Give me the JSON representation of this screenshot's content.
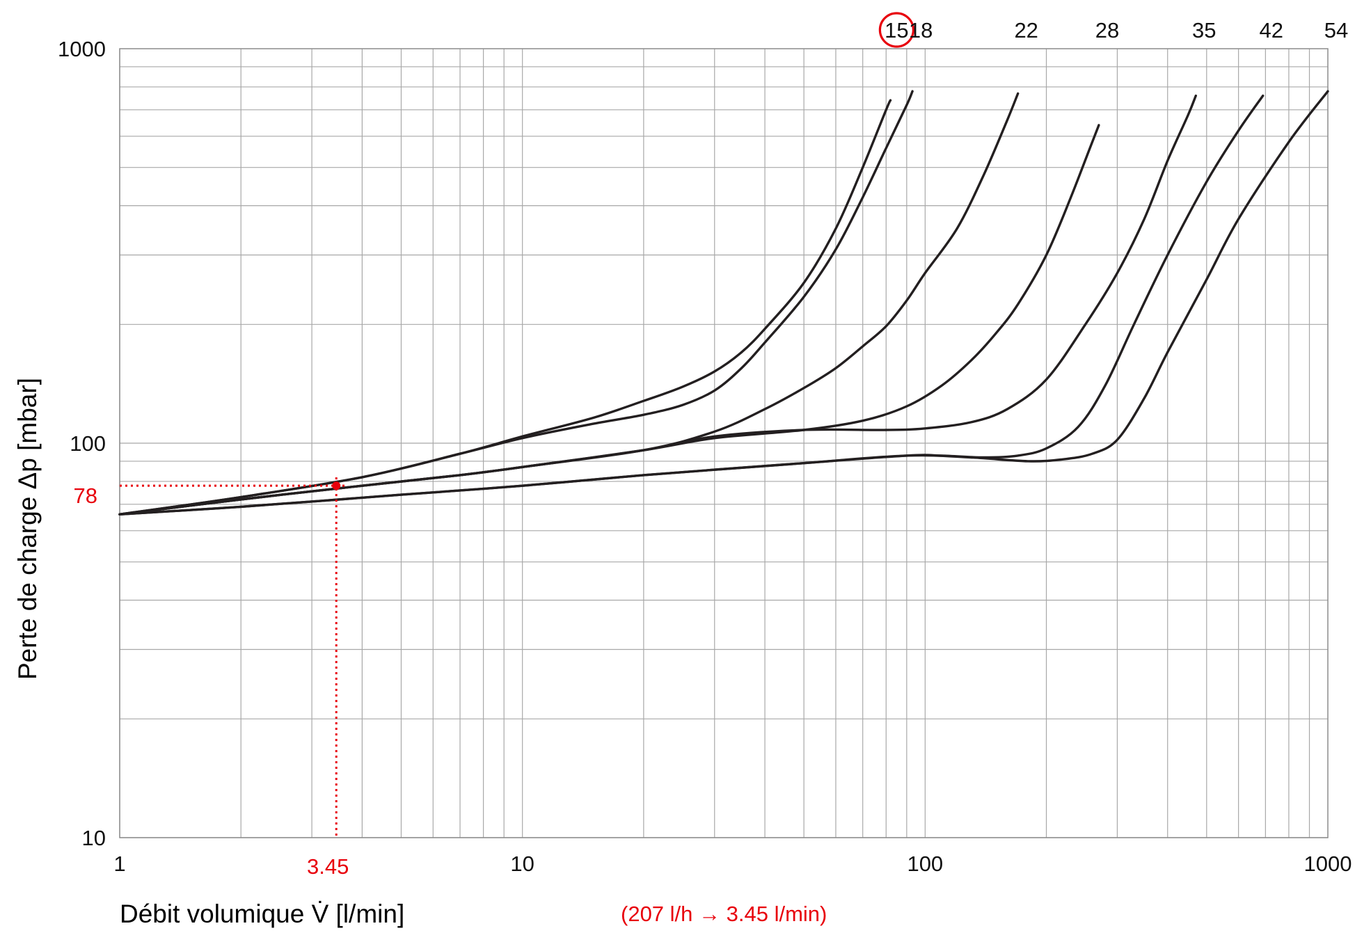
{
  "chart_data": {
    "type": "line",
    "x_scale": "log",
    "y_scale": "log",
    "xlim": [
      1,
      1000
    ],
    "ylim": [
      10,
      1000
    ],
    "x_ticks": [
      {
        "value": 1,
        "label": "1"
      },
      {
        "value": 10,
        "label": "10"
      },
      {
        "value": 100,
        "label": "100"
      },
      {
        "value": 1000,
        "label": "1000"
      }
    ],
    "y_ticks": [
      {
        "value": 10,
        "label": "10"
      },
      {
        "value": 100,
        "label": "100"
      },
      {
        "value": 1000,
        "label": "1000"
      }
    ],
    "xlabel": "Débit volumique V̇ [l/min]",
    "ylabel": "Perte de charge Δp [mbar]",
    "grid": true,
    "line_color": "#231f20",
    "series": [
      {
        "name": "15",
        "label_x": 81,
        "points": [
          [
            1,
            66
          ],
          [
            2,
            73
          ],
          [
            4,
            82
          ],
          [
            7,
            94
          ],
          [
            10,
            104
          ],
          [
            15,
            116
          ],
          [
            20,
            128
          ],
          [
            25,
            139
          ],
          [
            30,
            152
          ],
          [
            35,
            170
          ],
          [
            40,
            195
          ],
          [
            50,
            255
          ],
          [
            60,
            350
          ],
          [
            70,
            500
          ],
          [
            80,
            700
          ],
          [
            82,
            740
          ]
        ]
      },
      {
        "name": "18",
        "label_x": 93,
        "points": [
          [
            1,
            66
          ],
          [
            2,
            73
          ],
          [
            4,
            82
          ],
          [
            7,
            94
          ],
          [
            10,
            103
          ],
          [
            15,
            112
          ],
          [
            20,
            118
          ],
          [
            25,
            125
          ],
          [
            30,
            136
          ],
          [
            35,
            155
          ],
          [
            40,
            180
          ],
          [
            50,
            235
          ],
          [
            60,
            310
          ],
          [
            70,
            420
          ],
          [
            80,
            560
          ],
          [
            90,
            720
          ],
          [
            93,
            780
          ]
        ]
      },
      {
        "name": "22",
        "label_x": 170,
        "points": [
          [
            1,
            66
          ],
          [
            2,
            72
          ],
          [
            4,
            78
          ],
          [
            7,
            83
          ],
          [
            10,
            87
          ],
          [
            20,
            96
          ],
          [
            30,
            107
          ],
          [
            40,
            122
          ],
          [
            50,
            138
          ],
          [
            60,
            155
          ],
          [
            70,
            176
          ],
          [
            80,
            198
          ],
          [
            90,
            230
          ],
          [
            100,
            270
          ],
          [
            120,
            350
          ],
          [
            140,
            480
          ],
          [
            160,
            660
          ],
          [
            170,
            770
          ]
        ]
      },
      {
        "name": "28",
        "label_x": 270,
        "points": [
          [
            1,
            66
          ],
          [
            2,
            72
          ],
          [
            4,
            78
          ],
          [
            7,
            83
          ],
          [
            10,
            87
          ],
          [
            20,
            96
          ],
          [
            30,
            103
          ],
          [
            50,
            108
          ],
          [
            70,
            114
          ],
          [
            90,
            124
          ],
          [
            110,
            140
          ],
          [
            130,
            162
          ],
          [
            150,
            190
          ],
          [
            170,
            225
          ],
          [
            200,
            300
          ],
          [
            230,
            420
          ],
          [
            260,
            580
          ],
          [
            270,
            640
          ]
        ]
      },
      {
        "name": "35",
        "label_x": 470,
        "points": [
          [
            1,
            66
          ],
          [
            2,
            72
          ],
          [
            4,
            78
          ],
          [
            7,
            83
          ],
          [
            10,
            87
          ],
          [
            20,
            96
          ],
          [
            30,
            104
          ],
          [
            50,
            108
          ],
          [
            80,
            108
          ],
          [
            100,
            109
          ],
          [
            130,
            113
          ],
          [
            160,
            122
          ],
          [
            200,
            145
          ],
          [
            250,
            200
          ],
          [
            300,
            270
          ],
          [
            350,
            370
          ],
          [
            400,
            520
          ],
          [
            450,
            680
          ],
          [
            470,
            760
          ]
        ]
      },
      {
        "name": "42",
        "label_x": 690,
        "points": [
          [
            1,
            66
          ],
          [
            2,
            69
          ],
          [
            5,
            74
          ],
          [
            10,
            78
          ],
          [
            20,
            83
          ],
          [
            50,
            89
          ],
          [
            90,
            93
          ],
          [
            110,
            93
          ],
          [
            140,
            92
          ],
          [
            170,
            93
          ],
          [
            200,
            97
          ],
          [
            240,
            110
          ],
          [
            280,
            140
          ],
          [
            330,
            200
          ],
          [
            400,
            300
          ],
          [
            500,
            460
          ],
          [
            600,
            620
          ],
          [
            690,
            760
          ]
        ]
      },
      {
        "name": "54",
        "label_x": 1000,
        "points": [
          [
            1,
            66
          ],
          [
            2,
            69
          ],
          [
            5,
            74
          ],
          [
            10,
            78
          ],
          [
            20,
            83
          ],
          [
            50,
            89
          ],
          [
            90,
            93
          ],
          [
            130,
            92
          ],
          [
            180,
            90
          ],
          [
            220,
            91
          ],
          [
            260,
            94
          ],
          [
            300,
            102
          ],
          [
            350,
            130
          ],
          [
            400,
            170
          ],
          [
            500,
            260
          ],
          [
            600,
            370
          ],
          [
            800,
            580
          ],
          [
            1000,
            780
          ]
        ]
      }
    ],
    "circled_series": "15",
    "annotation": {
      "x": 3.45,
      "y": 78,
      "x_label": "3.45",
      "y_label": "78",
      "note": "(207 l/h → 3.45 l/min)",
      "color": "#e8000b"
    }
  }
}
